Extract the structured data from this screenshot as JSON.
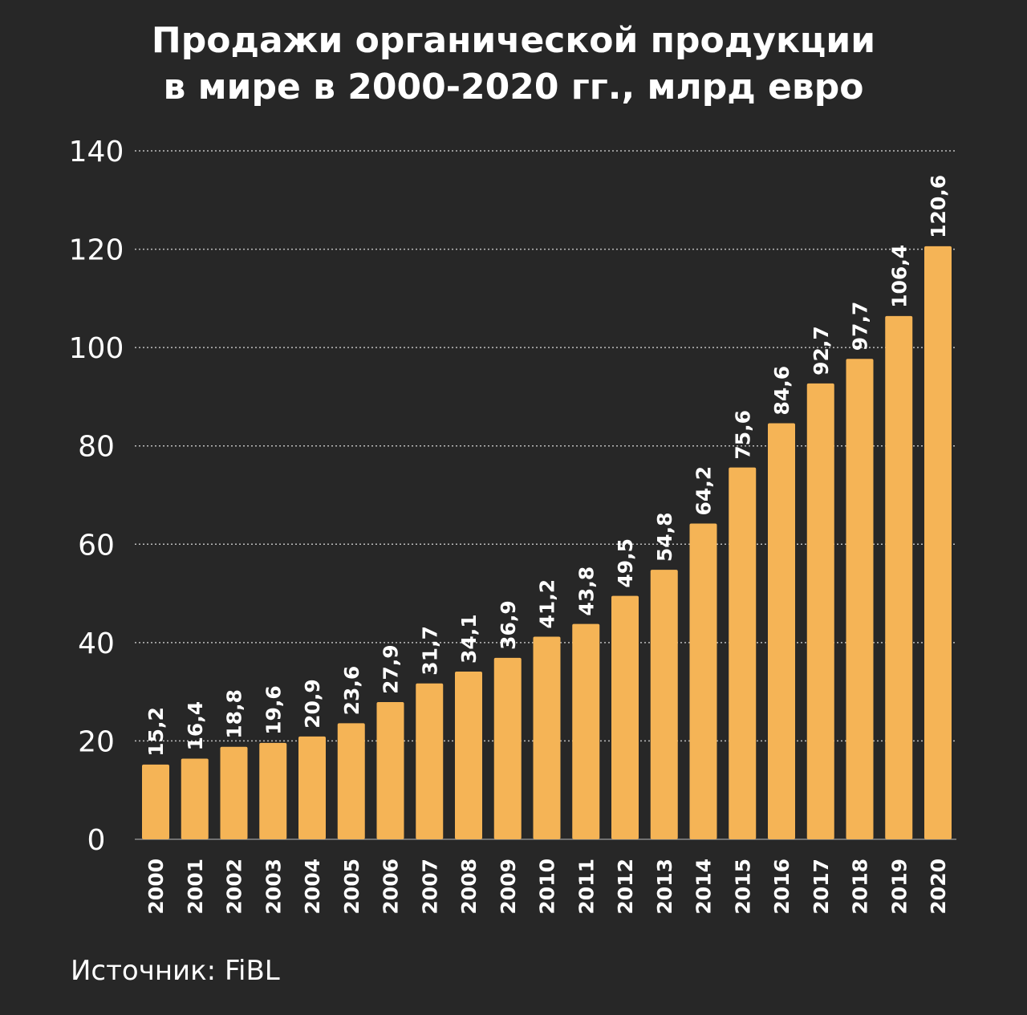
{
  "chart_data": {
    "type": "bar",
    "title_lines": [
      "Продажи органической продукции",
      "в мире в 2000-2020 гг., млрд евро"
    ],
    "categories": [
      "2000",
      "2001",
      "2002",
      "2003",
      "2004",
      "2005",
      "2006",
      "2007",
      "2008",
      "2009",
      "2010",
      "2011",
      "2012",
      "2013",
      "2014",
      "2015",
      "2016",
      "2017",
      "2018",
      "2019",
      "2020"
    ],
    "values": [
      15.2,
      16.4,
      18.8,
      19.6,
      20.9,
      23.6,
      27.9,
      31.7,
      34.1,
      36.9,
      41.2,
      43.8,
      49.5,
      54.8,
      64.2,
      75.6,
      84.6,
      92.7,
      97.7,
      106.4,
      120.6
    ],
    "value_labels": [
      "15,2",
      "16,4",
      "18,8",
      "19,6",
      "20,9",
      "23,6",
      "27,9",
      "31,7",
      "34,1",
      "36,9",
      "41,2",
      "43,8",
      "49,5",
      "54,8",
      "64,2",
      "75,6",
      "84,6",
      "92,7",
      "97,7",
      "106,4",
      "120,6"
    ],
    "yticks": [
      0,
      20,
      40,
      60,
      80,
      100,
      120,
      140
    ],
    "ylim": [
      0,
      140
    ],
    "xlabel": "",
    "ylabel": "",
    "grid": true,
    "bar_color": "#F5B456",
    "text_color": "#FFFFFF",
    "background_color": "#272727"
  },
  "source": "Источник: FiBL"
}
